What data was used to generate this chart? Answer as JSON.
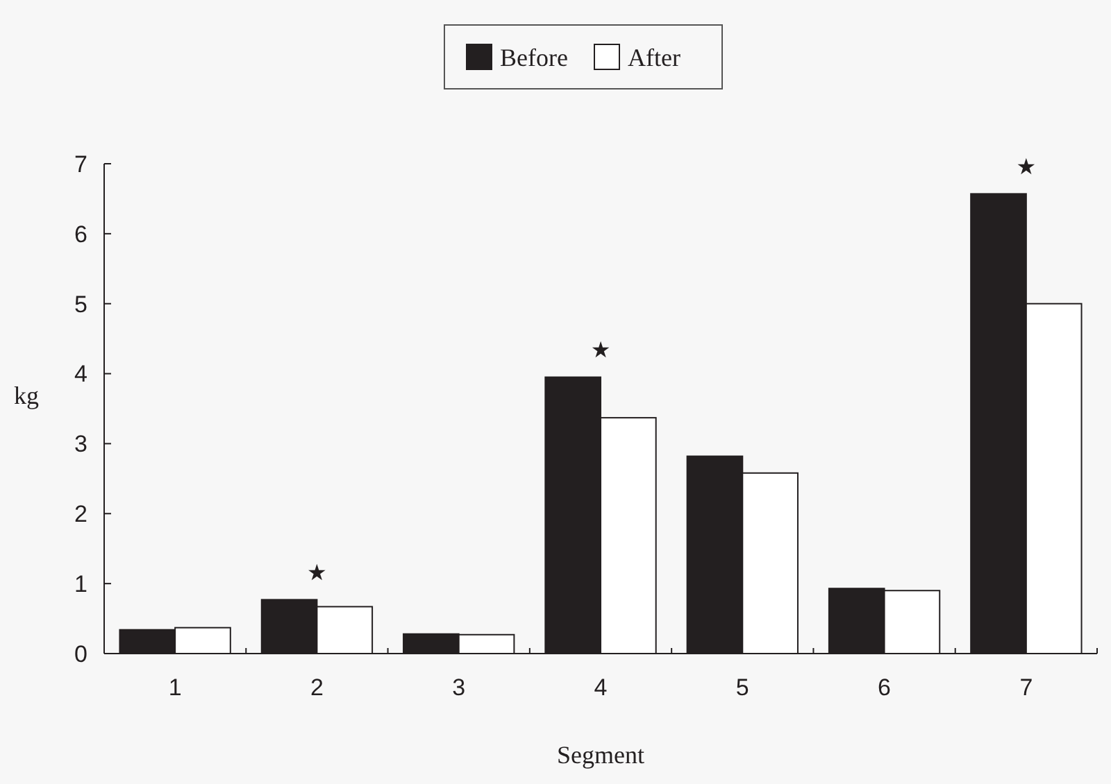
{
  "chart_data": {
    "type": "bar",
    "xlabel": "Segment",
    "ylabel": "kg",
    "categories": [
      "1",
      "2",
      "3",
      "4",
      "5",
      "6",
      "7"
    ],
    "series": [
      {
        "name": "Before",
        "color": "#231f20",
        "values": [
          0.34,
          0.77,
          0.28,
          3.95,
          2.82,
          0.93,
          6.57
        ]
      },
      {
        "name": "After",
        "color": "#ffffff",
        "values": [
          0.37,
          0.67,
          0.27,
          3.37,
          2.58,
          0.9,
          5.0
        ]
      }
    ],
    "ylim": [
      0,
      7
    ],
    "yticks": [
      0,
      1,
      2,
      3,
      4,
      5,
      6,
      7
    ],
    "grid": false,
    "legend": "top",
    "annotations": [
      {
        "text": "★",
        "x": "2",
        "y": 0.77
      },
      {
        "text": "★",
        "x": "4",
        "y": 3.95
      },
      {
        "text": "★",
        "x": "7",
        "y": 6.57
      }
    ]
  }
}
